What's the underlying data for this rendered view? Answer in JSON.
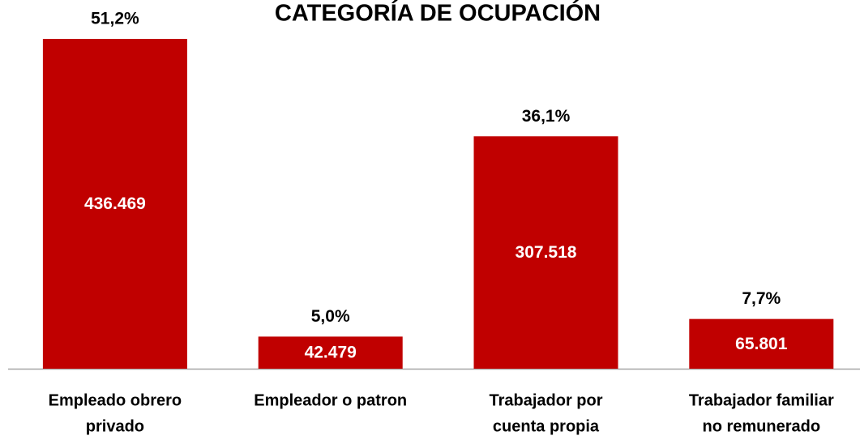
{
  "chart_data": {
    "type": "bar",
    "title": "CATEGORÍA DE OCUPACIÓN",
    "categories": [
      [
        "Empleado obrero",
        "privado"
      ],
      [
        "Empleador o patron"
      ],
      [
        "Trabajador por",
        "cuenta propia"
      ],
      [
        "Trabajador familiar",
        "no remunerado"
      ]
    ],
    "values": [
      436469,
      42479,
      307518,
      65801
    ],
    "value_labels": [
      "436.469",
      "42.479",
      "307.518",
      "65.801"
    ],
    "shares": [
      51.2,
      5.0,
      36.1,
      7.7
    ],
    "share_labels": [
      "51,2%",
      "5,0%",
      "36,1%",
      "7,7%"
    ],
    "color": "#c00000",
    "ylim": [
      0,
      440000
    ]
  }
}
